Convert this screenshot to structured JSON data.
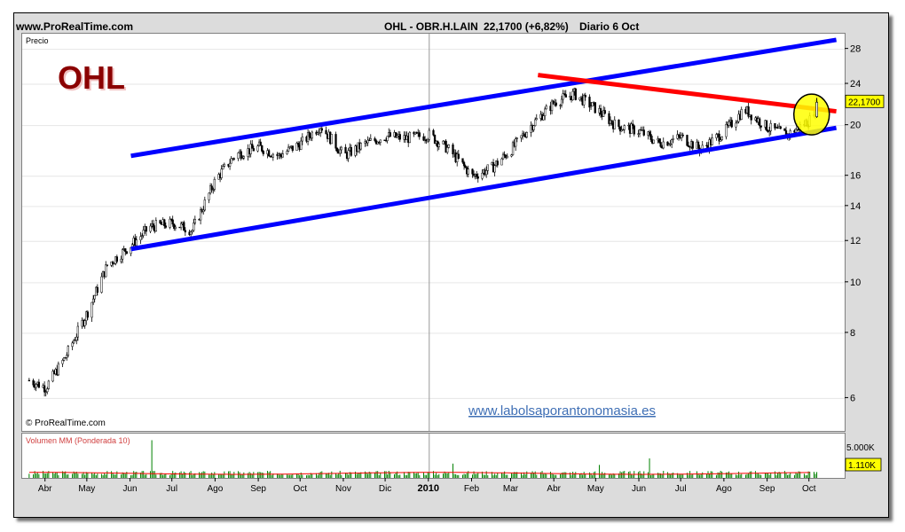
{
  "header": {
    "site": "www.ProRealTime.com",
    "instrument": "OHL - OBR.H.LAIN",
    "last": "22,1700 (+6,82%)",
    "period": "Diario  6 Oct"
  },
  "price_panel": {
    "label": "Precio",
    "logo": "OHL",
    "copyright": "© ProRealTime.com",
    "watermark": "www.labolsaporantonomasia.es",
    "last_badge": "22,1700",
    "last_badge_color": "#ffff00"
  },
  "volume_panel": {
    "label": "Volumen MM (Ponderada 10)",
    "scale_label": "5.000K",
    "last_badge": "1.110K"
  },
  "colors": {
    "channel_lines": "#0000ff",
    "resistance_line": "#ff0000",
    "candles": "#000000",
    "volume_bars": "#008000",
    "volume_ma": "#ff0000",
    "highlight_circle": "#ffff00"
  },
  "chart_data": {
    "type": "line",
    "title": "OHL - OBR.H.LAIN",
    "scale": "log",
    "x_ticks": [
      "Abr",
      "May",
      "Jun",
      "Jul",
      "Ago",
      "Sep",
      "Oct",
      "Nov",
      "Dic",
      "2010",
      "Feb",
      "Mar",
      "Abr",
      "May",
      "Jun",
      "Jul",
      "Ago",
      "Sep",
      "Oct"
    ],
    "y_ticks": [
      6,
      8,
      10,
      12,
      14,
      16,
      20,
      24,
      28
    ],
    "ylim": [
      5.2,
      30
    ],
    "series": [
      {
        "type": "candlestick",
        "x": [
          "2009-03-20",
          "2009-04-01",
          "2009-04-15",
          "2009-05-01",
          "2009-05-15",
          "2009-06-01",
          "2009-06-15",
          "2009-07-01",
          "2009-07-15",
          "2009-08-01",
          "2009-08-15",
          "2009-09-01",
          "2009-09-15",
          "2009-10-01",
          "2009-10-15",
          "2009-11-01",
          "2009-11-15",
          "2009-12-01",
          "2009-12-15",
          "2010-01-01",
          "2010-01-15",
          "2010-02-01",
          "2010-02-15",
          "2010-03-01",
          "2010-03-15",
          "2010-04-01",
          "2010-04-15",
          "2010-05-01",
          "2010-05-15",
          "2010-06-01",
          "2010-06-15",
          "2010-07-01",
          "2010-07-15",
          "2010-08-01",
          "2010-08-15",
          "2010-09-01",
          "2010-09-15",
          "2010-10-01",
          "2010-10-06"
        ],
        "close": [
          6.5,
          6.3,
          7.2,
          8.8,
          10.8,
          11.8,
          12.8,
          13.0,
          12.6,
          15.8,
          17.6,
          18.2,
          17.5,
          18.5,
          20.0,
          17.5,
          18.4,
          19.1,
          18.9,
          19.2,
          18.0,
          16.0,
          16.6,
          18.0,
          20.0,
          22.2,
          23.0,
          21.5,
          20.0,
          19.5,
          18.5,
          19.0,
          18.0,
          19.5,
          21.5,
          19.8,
          19.2,
          20.5,
          22.17
        ]
      },
      {
        "name": "",
        "type": "trendline",
        "x": [
          "2009-06-01",
          "2010-10-20"
        ],
        "y": [
          17.5,
          29.2
        ]
      },
      {
        "name": "",
        "type": "trendline",
        "x": [
          "2009-06-01",
          "2010-10-20"
        ],
        "y": [
          11.6,
          19.8
        ]
      },
      {
        "name": "",
        "type": "trendline",
        "x": [
          "2010-03-20",
          "2010-10-20"
        ],
        "y": [
          25.0,
          21.3
        ]
      }
    ],
    "volume": {
      "label": "Volumen MM (Ponderada 10)",
      "ylim": [
        0,
        6000
      ],
      "unit": "K",
      "last": 1110
    }
  }
}
